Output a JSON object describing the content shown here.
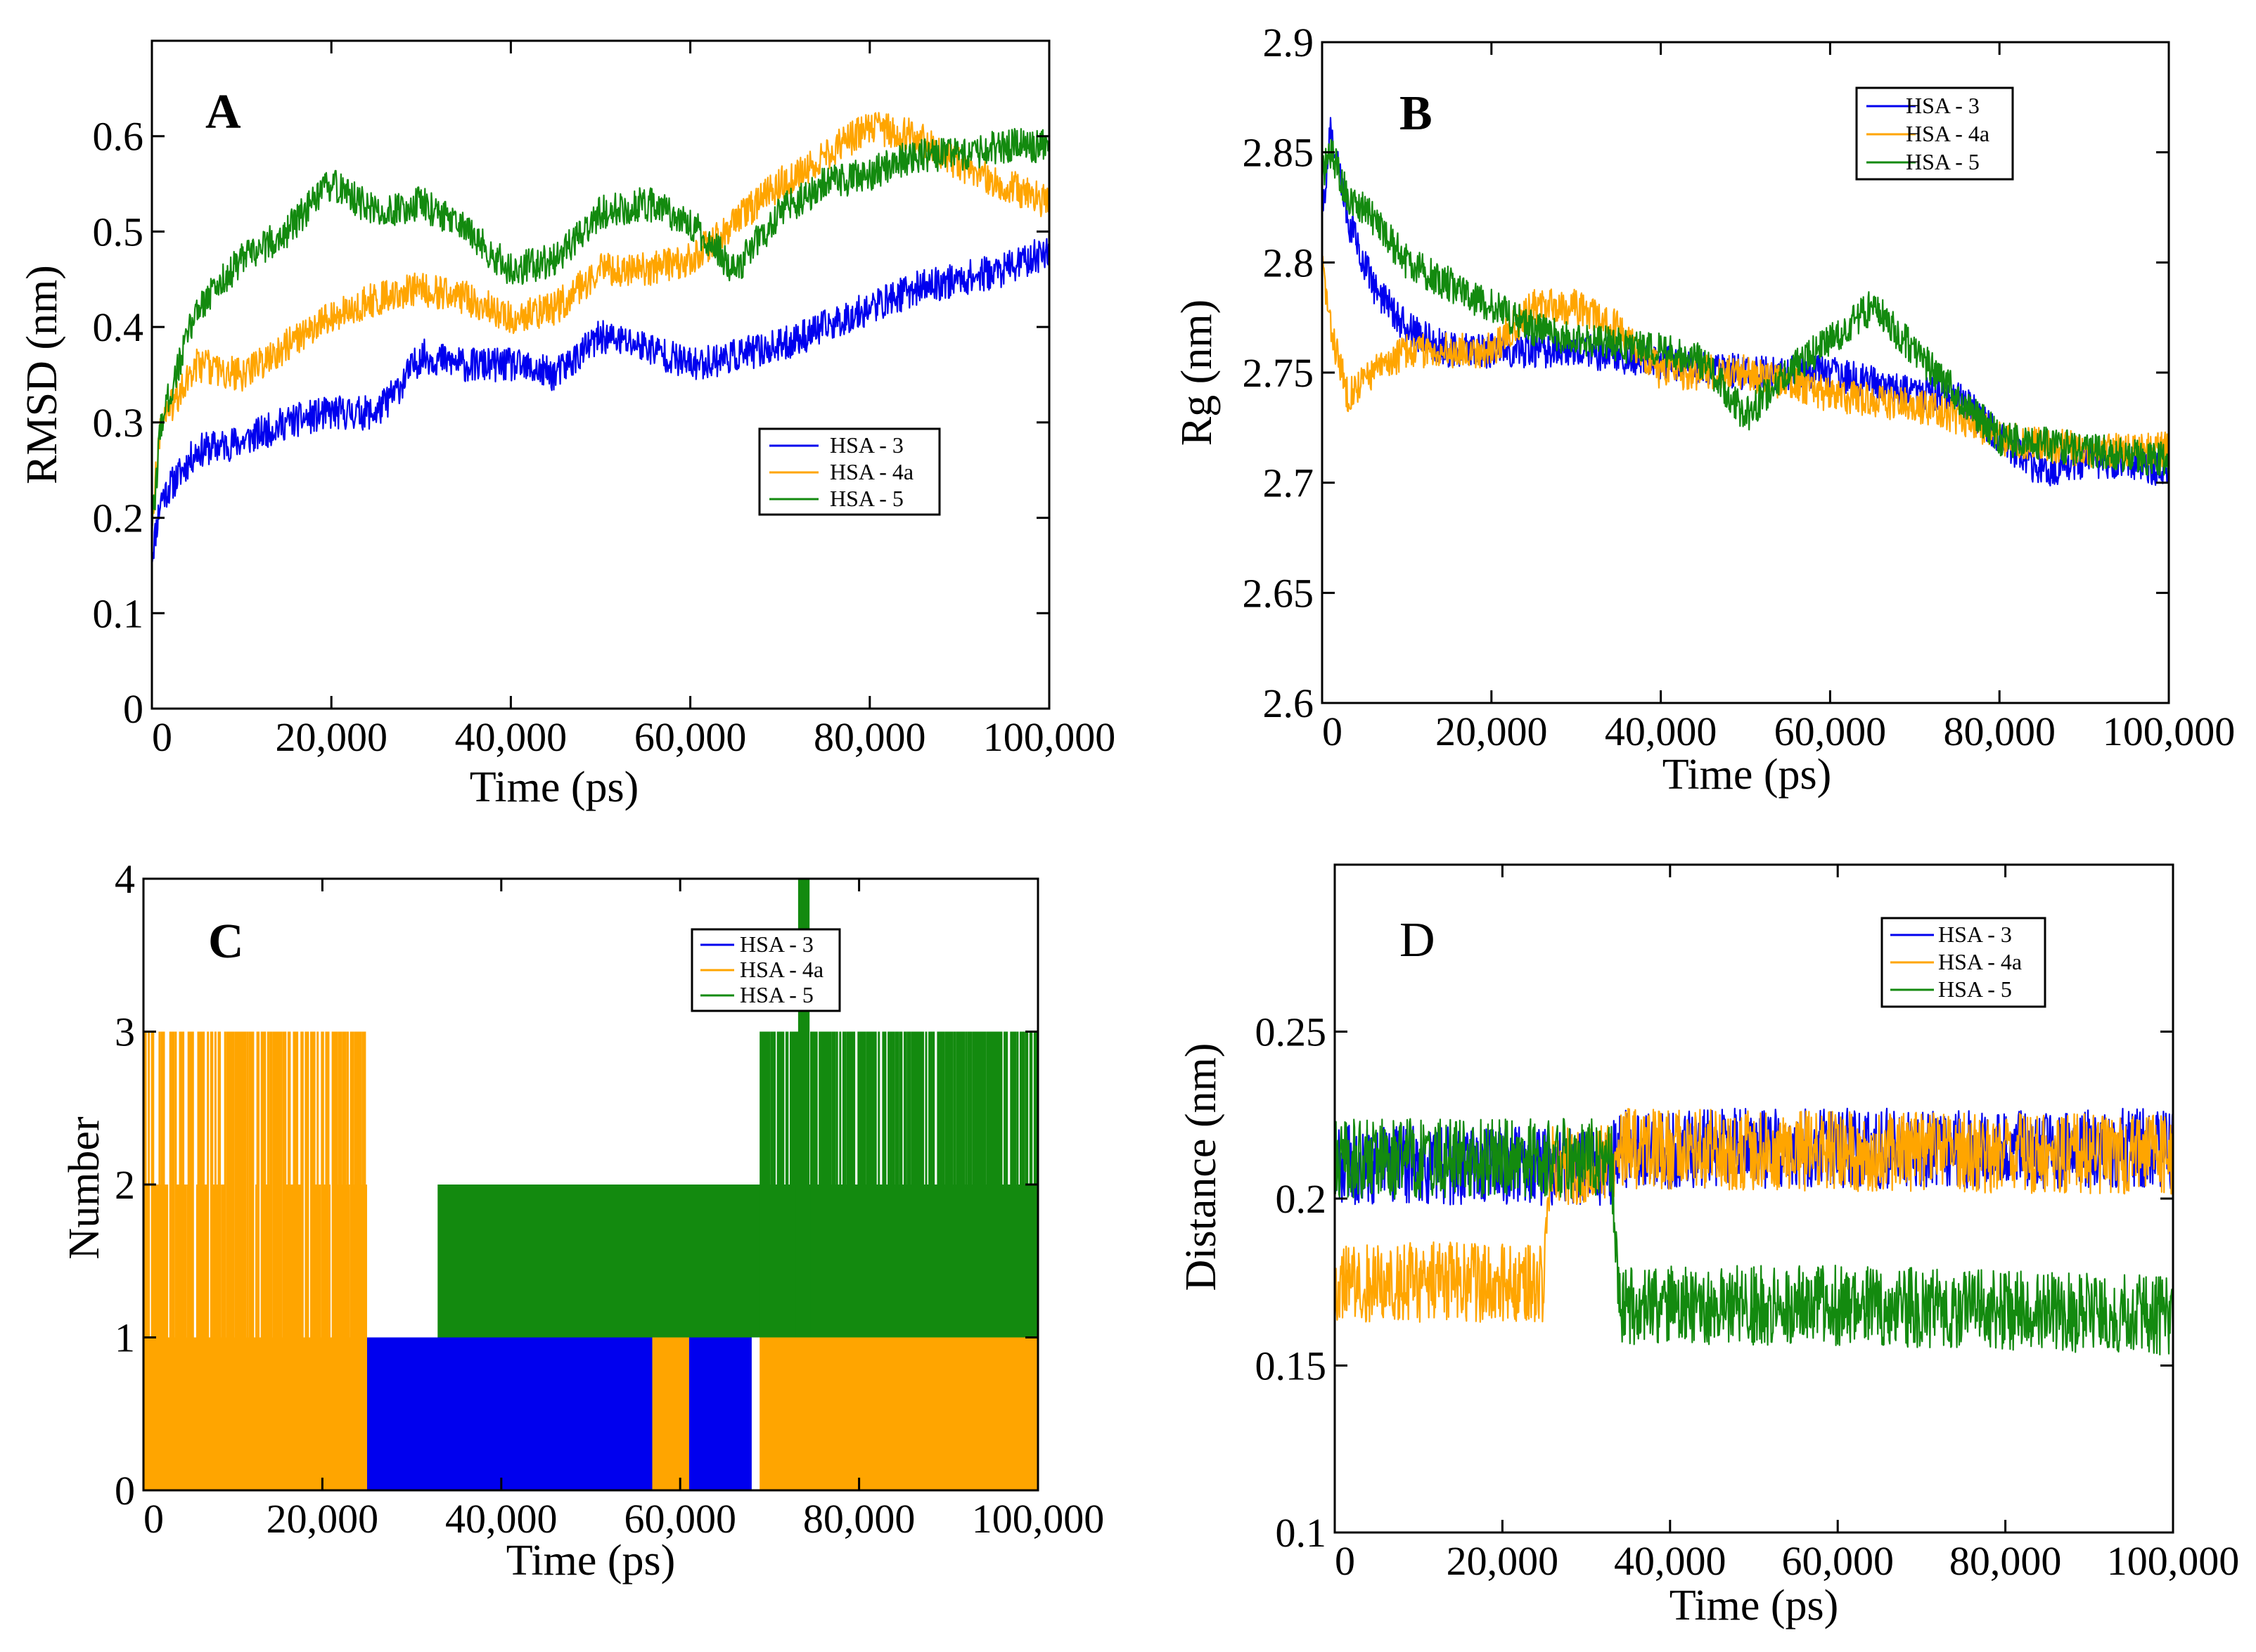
{
  "colors": {
    "hsa3": "#0000ee",
    "hsa4a": "#ffa500",
    "hsa5": "#138a0f"
  },
  "legend_labels": [
    "HSA - 3",
    "HSA - 4a",
    "HSA - 5"
  ],
  "chart_data": [
    {
      "panel": "A",
      "type": "line",
      "title": "",
      "xlabel": "Time (ps)",
      "ylabel": "RMSD (nm)",
      "xlim": [
        0,
        100000
      ],
      "ylim": [
        0,
        0.7
      ],
      "xticks": [
        0,
        20000,
        40000,
        60000,
        80000,
        100000
      ],
      "xtick_labels": [
        "0",
        "20,000",
        "40,000",
        "60,000",
        "80,000",
        "100,000"
      ],
      "yticks": [
        0,
        0.1,
        0.2,
        0.3,
        0.4,
        0.5,
        0.6
      ],
      "ytick_labels": [
        "0",
        "0.1",
        "0.2",
        "0.3",
        "0.4",
        "0.5",
        "0.6"
      ],
      "legend": "center-right",
      "noise": 0.018,
      "series": [
        {
          "name": "HSA - 3",
          "color": "#0000ee",
          "x": [
            0,
            1000,
            5000,
            10000,
            15000,
            20000,
            25000,
            27000,
            30000,
            35000,
            40000,
            45000,
            50000,
            55000,
            60000,
            65000,
            70000,
            75000,
            80000,
            85000,
            90000,
            95000,
            100000
          ],
          "y": [
            0.16,
            0.22,
            0.27,
            0.28,
            0.3,
            0.31,
            0.31,
            0.33,
            0.37,
            0.36,
            0.36,
            0.35,
            0.39,
            0.38,
            0.36,
            0.37,
            0.38,
            0.4,
            0.42,
            0.44,
            0.45,
            0.46,
            0.48
          ]
        },
        {
          "name": "HSA - 4a",
          "color": "#ffa500",
          "x": [
            0,
            1000,
            5000,
            10000,
            15000,
            20000,
            25000,
            30000,
            35000,
            40000,
            45000,
            50000,
            55000,
            60000,
            65000,
            70000,
            75000,
            80000,
            85000,
            90000,
            95000,
            100000
          ],
          "y": [
            0.2,
            0.3,
            0.36,
            0.35,
            0.38,
            0.41,
            0.43,
            0.44,
            0.43,
            0.41,
            0.42,
            0.46,
            0.46,
            0.47,
            0.51,
            0.55,
            0.58,
            0.61,
            0.6,
            0.57,
            0.55,
            0.53
          ]
        },
        {
          "name": "HSA - 5",
          "color": "#138a0f",
          "x": [
            0,
            1000,
            5000,
            10000,
            15000,
            20000,
            25000,
            30000,
            35000,
            40000,
            45000,
            50000,
            55000,
            60000,
            65000,
            70000,
            75000,
            80000,
            85000,
            90000,
            95000,
            100000
          ],
          "y": [
            0.18,
            0.3,
            0.42,
            0.47,
            0.5,
            0.55,
            0.52,
            0.53,
            0.5,
            0.46,
            0.47,
            0.52,
            0.53,
            0.51,
            0.46,
            0.52,
            0.55,
            0.56,
            0.58,
            0.58,
            0.59,
            0.59
          ]
        }
      ]
    },
    {
      "panel": "B",
      "type": "line",
      "title": "",
      "xlabel": "Time (ps)",
      "ylabel": "Rg (nm)",
      "xlim": [
        0,
        100000
      ],
      "ylim": [
        2.6,
        2.9
      ],
      "xticks": [
        0,
        20000,
        40000,
        60000,
        80000,
        100000
      ],
      "xtick_labels": [
        "0",
        "20,000",
        "40,000",
        "60,000",
        "80,000",
        "100,000"
      ],
      "yticks": [
        2.6,
        2.65,
        2.7,
        2.75,
        2.8,
        2.85,
        2.9
      ],
      "ytick_labels": [
        "2.6",
        "2.65",
        "2.7",
        "2.75",
        "2.8",
        "2.85",
        "2.9"
      ],
      "legend": "top-right",
      "noise": 0.008,
      "series": [
        {
          "name": "HSA - 3",
          "color": "#0000ee",
          "x": [
            0,
            1000,
            3000,
            6000,
            10000,
            15000,
            20000,
            30000,
            40000,
            50000,
            60000,
            70000,
            75000,
            80000,
            85000,
            90000,
            95000,
            100000
          ],
          "y": [
            2.82,
            2.86,
            2.82,
            2.79,
            2.77,
            2.76,
            2.76,
            2.76,
            2.755,
            2.75,
            2.75,
            2.74,
            2.74,
            2.72,
            2.705,
            2.71,
            2.71,
            2.705
          ]
        },
        {
          "name": "HSA - 4a",
          "color": "#ffa500",
          "x": [
            0,
            1000,
            3000,
            6000,
            10000,
            15000,
            20000,
            25000,
            30000,
            35000,
            40000,
            50000,
            60000,
            70000,
            75000,
            80000,
            90000,
            100000
          ],
          "y": [
            2.8,
            2.77,
            2.74,
            2.75,
            2.76,
            2.76,
            2.76,
            2.78,
            2.78,
            2.77,
            2.75,
            2.75,
            2.74,
            2.735,
            2.73,
            2.72,
            2.715,
            2.715
          ]
        },
        {
          "name": "HSA - 5",
          "color": "#138a0f",
          "x": [
            0,
            1000,
            3000,
            6000,
            10000,
            15000,
            20000,
            25000,
            30000,
            40000,
            45000,
            50000,
            55000,
            60000,
            65000,
            70000,
            75000,
            80000,
            90000,
            100000
          ],
          "y": [
            2.84,
            2.85,
            2.83,
            2.82,
            2.8,
            2.79,
            2.78,
            2.77,
            2.765,
            2.76,
            2.755,
            2.73,
            2.75,
            2.765,
            2.78,
            2.76,
            2.74,
            2.72,
            2.715,
            2.71
          ]
        }
      ]
    },
    {
      "panel": "C",
      "type": "line",
      "title": "",
      "xlabel": "Time (ps)",
      "ylabel": "Number",
      "xlim": [
        0,
        100000
      ],
      "ylim": [
        0,
        4
      ],
      "xticks": [
        0,
        20000,
        40000,
        60000,
        80000,
        100000
      ],
      "xtick_labels": [
        "0",
        "20,000",
        "40,000",
        "60,000",
        "80,000",
        "100,000"
      ],
      "yticks": [
        0,
        1,
        2,
        3,
        4
      ],
      "ytick_labels": [
        "0",
        "1",
        "2",
        "3",
        "4"
      ],
      "legend": "top-right",
      "series": [
        {
          "name": "HSA - 3",
          "color": "#0000ee",
          "segments": [
            [
              25000,
              57000,
              0,
              1
            ],
            [
              61000,
              68000,
              0,
              1
            ],
            [
              33000,
              35000,
              0,
              1
            ]
          ]
        },
        {
          "name": "HSA - 4a",
          "color": "#ffa500",
          "segments": [
            [
              0,
              25000,
              0,
              3
            ],
            [
              57000,
              61000,
              0,
              1
            ],
            [
              69000,
              100000,
              0,
              1
            ]
          ]
        },
        {
          "name": "HSA - 5",
          "color": "#138a0f",
          "segments": [
            [
              33000,
              70000,
              1,
              2
            ],
            [
              69000,
              100000,
              1,
              3
            ],
            [
              73000,
              74500,
              1,
              4
            ]
          ]
        }
      ]
    },
    {
      "panel": "D",
      "type": "line",
      "title": "",
      "xlabel": "Time (ps)",
      "ylabel": "Distance (nm)",
      "xlim": [
        0,
        100000
      ],
      "ylim": [
        0.1,
        0.3
      ],
      "xticks": [
        0,
        20000,
        40000,
        60000,
        80000,
        100000
      ],
      "xtick_labels": [
        "0",
        "20,000",
        "40,000",
        "60,000",
        "80,000",
        "100,000"
      ],
      "yticks": [
        0.1,
        0.15,
        0.2,
        0.25
      ],
      "ytick_labels": [
        "0.1",
        "0.15",
        "0.2",
        "0.25"
      ],
      "legend": "top-right",
      "noise": 0.012,
      "series": [
        {
          "name": "HSA - 3",
          "color": "#0000ee",
          "x": [
            0,
            33000,
            34000,
            100000
          ],
          "y": [
            0.21,
            0.21,
            0.215,
            0.215
          ]
        },
        {
          "name": "HSA - 4a",
          "color": "#ffa500",
          "x": [
            0,
            25000,
            26000,
            33000,
            34000,
            100000
          ],
          "y": [
            0.175,
            0.175,
            0.21,
            0.21,
            0.215,
            0.213
          ]
        },
        {
          "name": "HSA - 5",
          "color": "#138a0f",
          "x": [
            0,
            33000,
            34000,
            60000,
            100000
          ],
          "y": [
            0.212,
            0.212,
            0.168,
            0.168,
            0.165
          ]
        }
      ]
    }
  ]
}
